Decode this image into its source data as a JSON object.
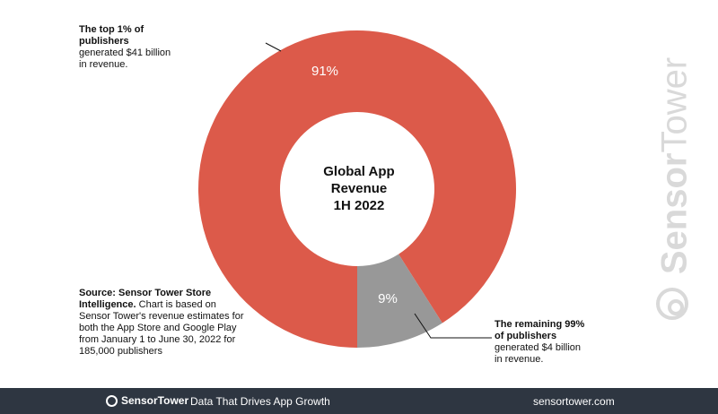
{
  "chart_data": {
    "type": "pie",
    "donut": true,
    "categories": [
      "The top 1% of publishers",
      "The remaining 99% of publishers"
    ],
    "values": [
      91,
      9
    ],
    "value_labels": [
      "91%",
      "9%"
    ],
    "colors": [
      "#dc5a4a",
      "#989898"
    ],
    "center_title": [
      "Global App",
      "Revenue",
      "1H 2022"
    ]
  },
  "annotations": {
    "top": {
      "bold": [
        "The top 1% of",
        "publishers"
      ],
      "text": [
        "generated $41 billion",
        "in revenue."
      ]
    },
    "bottom": {
      "bold": [
        "The remaining 99%",
        "of publishers"
      ],
      "text": [
        "generated $4 billion",
        "in revenue."
      ]
    },
    "source": {
      "bold": "Source: Sensor Tower Store Intelligence.",
      "text": "Chart is based on Sensor Tower's revenue estimates for both the App Store and Google Play from January 1 to June 30, 2022 for 185,000 publishers"
    }
  },
  "watermark": {
    "part1": "Sensor",
    "part2": "Tower"
  },
  "footer": {
    "brand": "SensorTower",
    "tagline": "Data That Drives App Growth",
    "site": "sensortower.com"
  }
}
